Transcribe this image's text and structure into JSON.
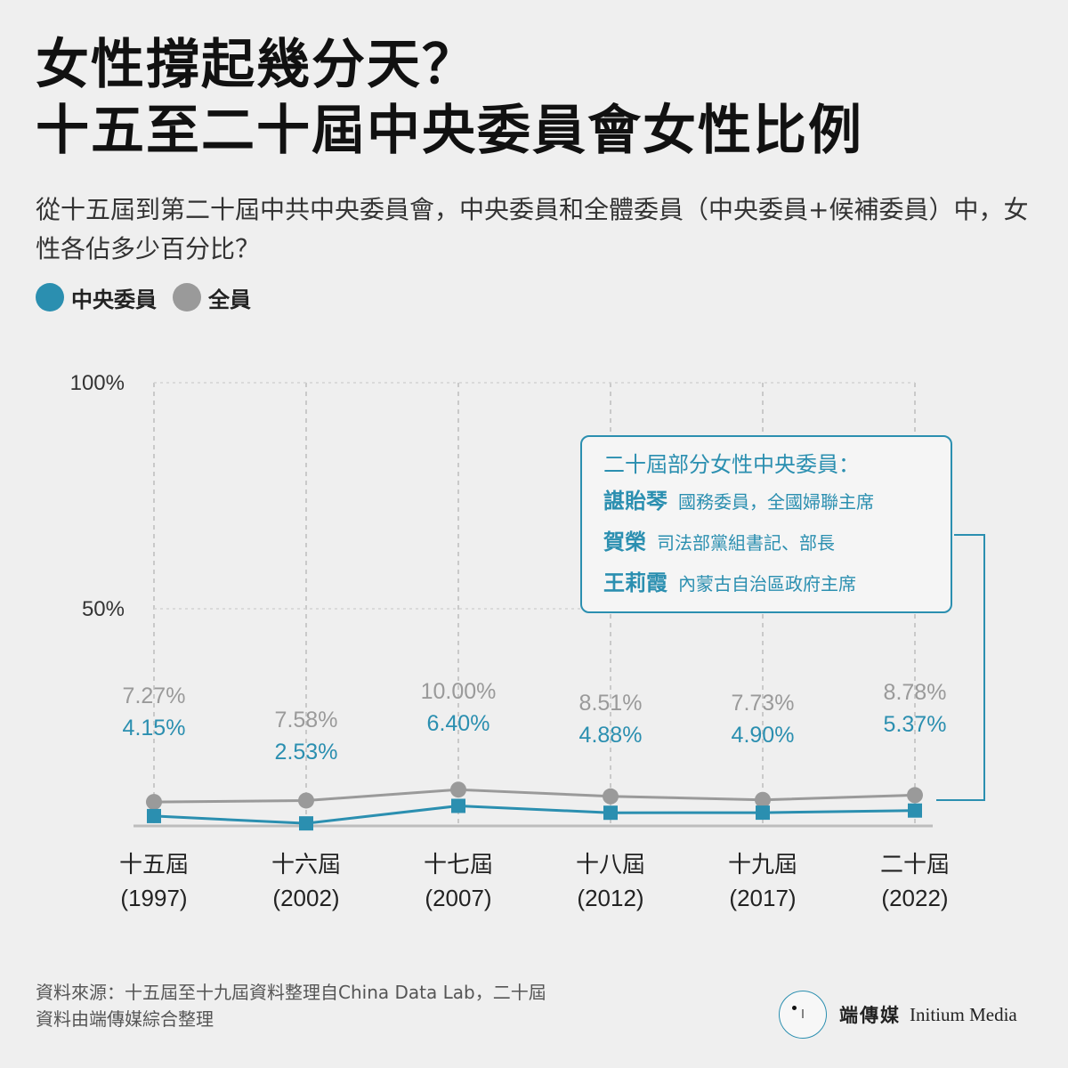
{
  "title": {
    "line1": "女性撐起幾分天？",
    "line2": "十五至二十屆中央委員會女性比例"
  },
  "subtitle": "從十五屆到第二十屆中共中央委員會，中央委員和全體委員（中央委員+候補委員）中，女性各佔多少百分比？",
  "legend": {
    "central": {
      "label": "中央委員",
      "color": "#2b8fb0"
    },
    "all": {
      "label": "全員",
      "color": "#9a9a9a"
    }
  },
  "callout": {
    "heading": "二十屆部分女性中央委員：",
    "members": [
      {
        "name": "諶貽琴",
        "desc": "國務委員，全國婦聯主席"
      },
      {
        "name": "賀榮",
        "desc": "司法部黨組書記、部長"
      },
      {
        "name": "王莉霞",
        "desc": "內蒙古自治區政府主席"
      }
    ]
  },
  "footer": {
    "source_line1": "資料來源：十五屆至十九屆資料整理自China Data Lab，二十屆",
    "source_line2": "資料由端傳媒綜合整理"
  },
  "brand": {
    "logo_text": "ꟾ",
    "name_zh": "端傳媒",
    "name_en": "Initium Media"
  },
  "chart_data": {
    "type": "line",
    "categories": [
      "十五屆",
      "十六屆",
      "十七屆",
      "十八屆",
      "十九屆",
      "二十屆"
    ],
    "category_years": [
      "(1997)",
      "(2002)",
      "(2007)",
      "(2012)",
      "(2017)",
      "(2022)"
    ],
    "y_ticks": [
      "100%",
      "50%"
    ],
    "ylim": [
      0,
      100
    ],
    "grid": true,
    "series": [
      {
        "name": "全員",
        "color": "#9a9a9a",
        "marker": "circle",
        "values": [
          7.27,
          7.58,
          10.0,
          8.51,
          7.73,
          8.78
        ],
        "labels": [
          "7.27%",
          "7.58%",
          "10.00%",
          "8.51%",
          "7.73%",
          "8.78%"
        ]
      },
      {
        "name": "中央委員",
        "color": "#2b8fb0",
        "marker": "square",
        "values": [
          4.15,
          2.53,
          6.4,
          4.88,
          4.9,
          5.37
        ],
        "labels": [
          "4.15%",
          "2.53%",
          "6.40%",
          "4.88%",
          "4.90%",
          "5.37%"
        ]
      }
    ]
  }
}
